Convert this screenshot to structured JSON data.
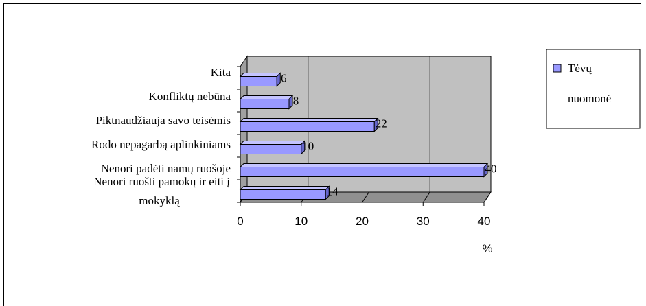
{
  "chart_data": {
    "type": "bar",
    "orientation": "horizontal",
    "style": "3d",
    "categories": [
      "Nenori ruošti pamokų ir eiti į mokyklą",
      "Nenori padėti namų ruošoje",
      "Rodo nepagarbą aplinkiniams",
      "Piktnaudžiauja savo teisėmis",
      "Konfliktų nebūna",
      "Kita"
    ],
    "series": [
      {
        "name": "Tėvų nuomonė",
        "values": [
          14,
          40,
          10,
          22,
          8,
          6
        ],
        "color": "#9999ff"
      }
    ],
    "data_labels": [
      "14",
      "40",
      "10",
      "22",
      "8",
      "6"
    ],
    "x_ticks": [
      "0",
      "10",
      "20",
      "30",
      "40"
    ],
    "xlim": [
      0,
      40
    ],
    "xlabel": "%",
    "grid": true,
    "plot_background": "#c0c0c0",
    "legend": {
      "position": "right",
      "text_lines": [
        "Tėvų",
        "nuomonė"
      ]
    }
  }
}
